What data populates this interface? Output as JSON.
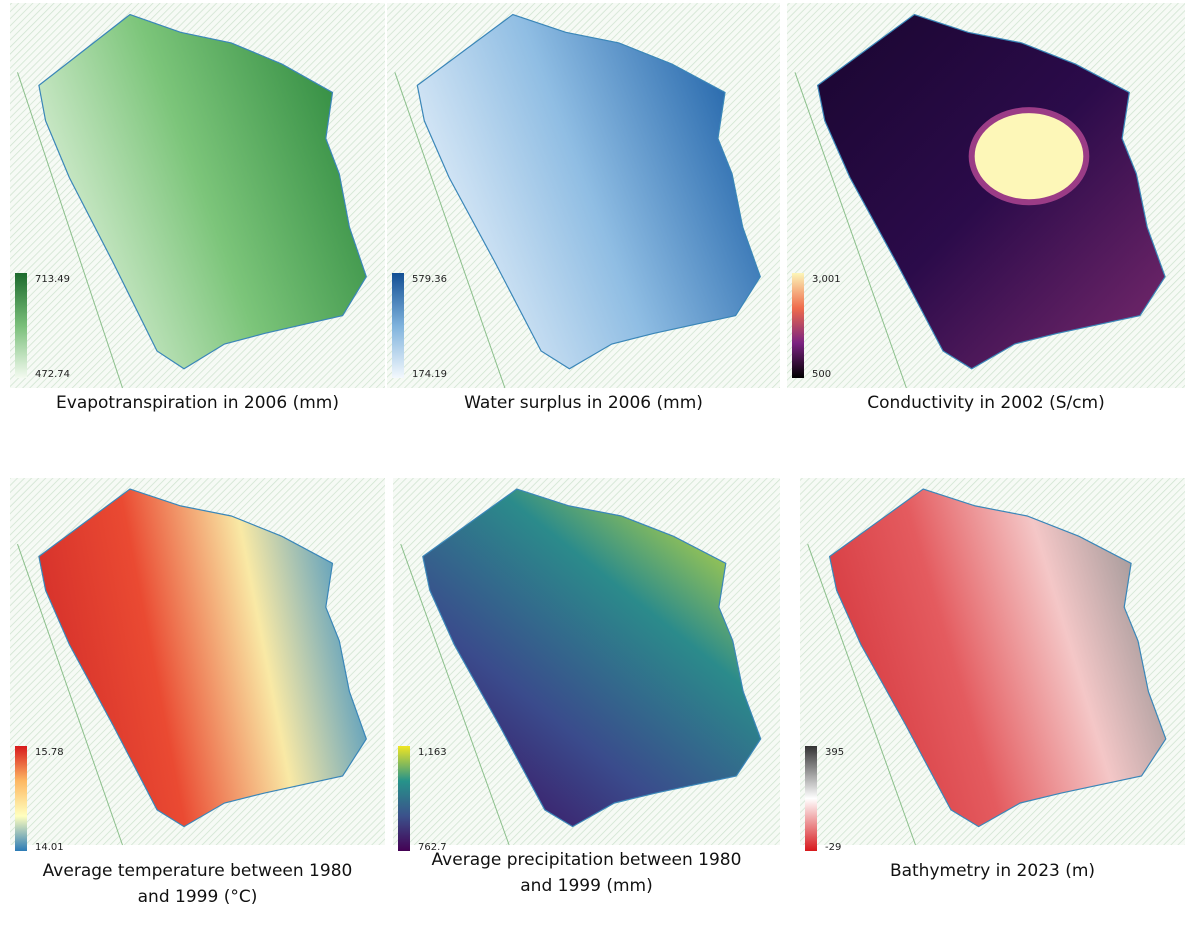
{
  "panels": [
    {
      "caption": [
        "Evapotranspiration in 2006 (mm)"
      ],
      "legend": {
        "max": "713.49",
        "min": "472.74"
      }
    },
    {
      "caption": [
        "Water surplus in 2006 (mm)"
      ],
      "legend": {
        "max": "579.36",
        "min": "174.19"
      }
    },
    {
      "caption": [
        "Conductivity in 2002 (S/cm)"
      ],
      "legend": {
        "max": "3,001",
        "min": "500"
      }
    },
    {
      "caption": [
        "Average temperature between 1980",
        "and 1999 (°C)"
      ],
      "legend": {
        "max": "15.78",
        "min": "14.01"
      }
    },
    {
      "caption": [
        "Average precipitation between 1980",
        "and 1999 (mm)"
      ],
      "legend": {
        "max": "1,163",
        "min": "762.7"
      }
    },
    {
      "caption": [
        "Bathymetry in 2023 (m)"
      ],
      "legend": {
        "max": "395",
        "min": "-29"
      }
    }
  ]
}
